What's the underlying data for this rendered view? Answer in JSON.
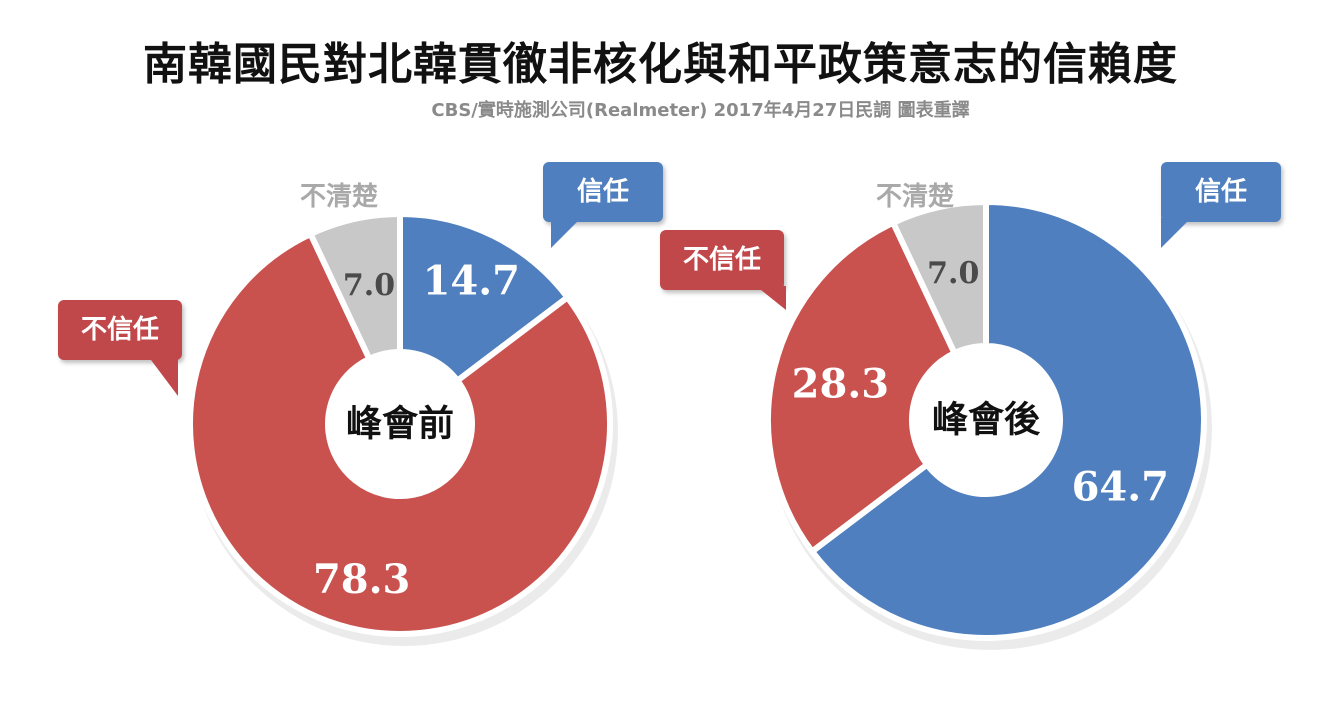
{
  "title": "南韓國民對北韓貫徹非核化與和平政策意志的信賴度",
  "subtitle": "CBS/實時施測公司(Realmeter) 2017年4月27日民調 圖表重譯",
  "colors": {
    "trust": "#4f7fbf",
    "distrust": "#c9524f",
    "unsure": "#c8c8c8"
  },
  "chart_data": [
    {
      "type": "pie",
      "center_label": "峰會前",
      "categories": [
        "信任",
        "不信任",
        "不清楚"
      ],
      "values": [
        14.7,
        78.3,
        7.0
      ],
      "value_labels": [
        "14.7",
        "78.3",
        "7.0"
      ],
      "callouts": {
        "trust": "信任",
        "distrust": "不信任",
        "unsure": "不清楚"
      }
    },
    {
      "type": "pie",
      "center_label": "峰會後",
      "categories": [
        "信任",
        "不信任",
        "不清楚"
      ],
      "values": [
        64.7,
        28.3,
        7.0
      ],
      "value_labels": [
        "64.7",
        "28.3",
        "7.0"
      ],
      "callouts": {
        "trust": "信任",
        "distrust": "不信任",
        "unsure": "不清楚"
      }
    }
  ]
}
